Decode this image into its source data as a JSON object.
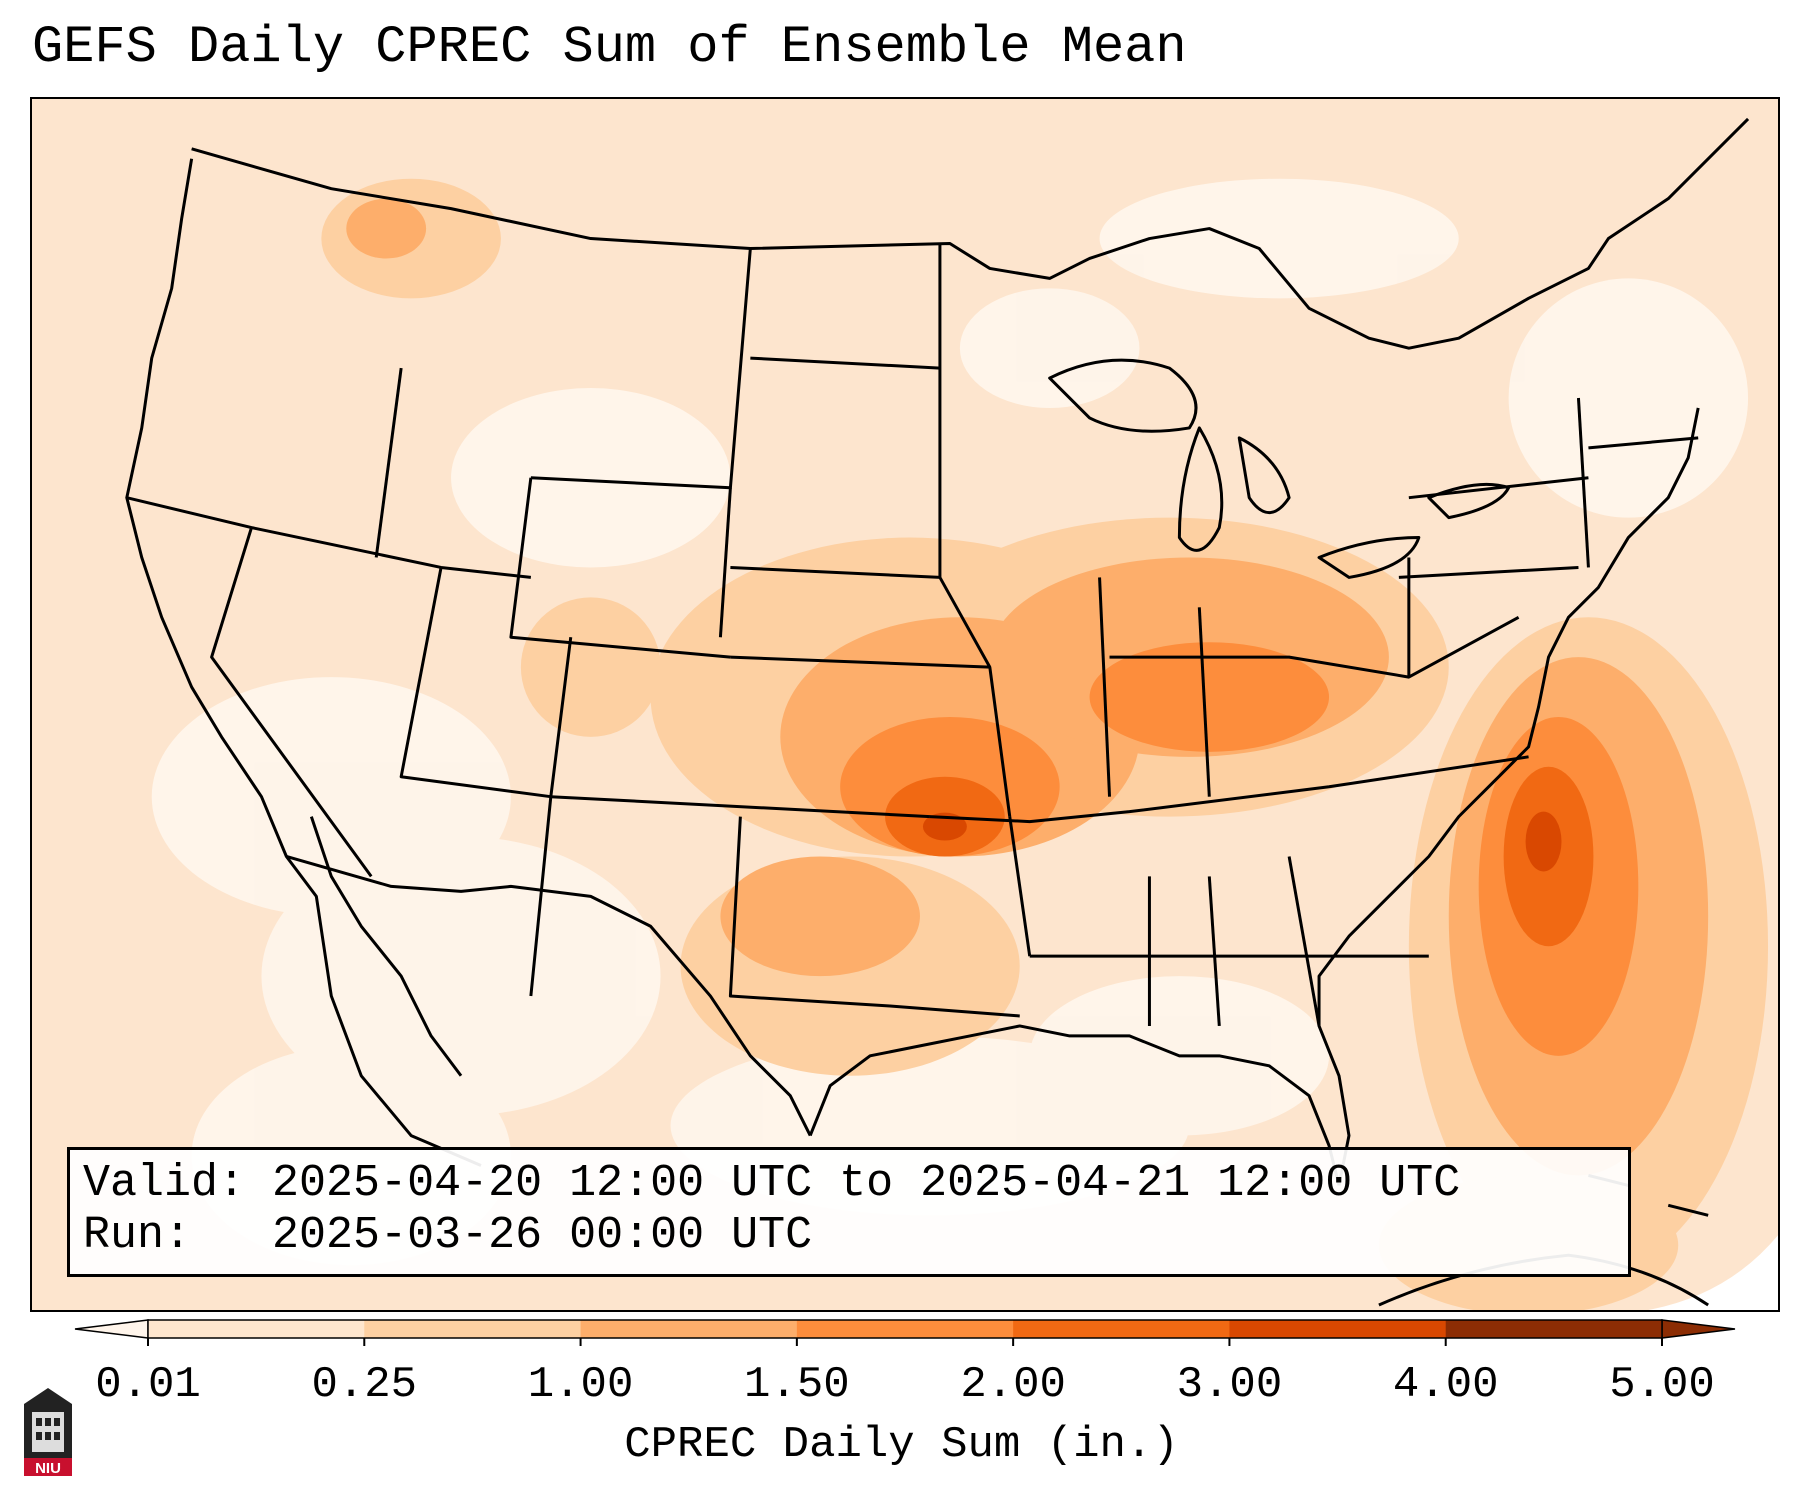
{
  "title": "GEFS Daily CPREC Sum of Ensemble Mean",
  "info_box": {
    "valid_label": "Valid:",
    "valid_value": "2025-04-20 12:00 UTC to 2025-04-21 12:00 UTC",
    "run_label": "Run:",
    "run_value": "2025-03-26 00:00 UTC"
  },
  "colorbar": {
    "label": "CPREC Daily Sum (in.)",
    "ticks": [
      "0.01",
      "0.25",
      "1.00",
      "1.50",
      "2.00",
      "3.00",
      "4.00",
      "5.00"
    ],
    "colors": [
      "#fff5eb",
      "#fee6ce",
      "#fdd0a2",
      "#fdae6b",
      "#fd8d3c",
      "#f16913",
      "#d94801",
      "#8c2d04"
    ],
    "extend": "both"
  },
  "logo": {
    "text": "NIU",
    "icon": "niu-building-icon"
  },
  "map": {
    "region": "CONUS",
    "projection": "Lambert Conformal"
  }
}
